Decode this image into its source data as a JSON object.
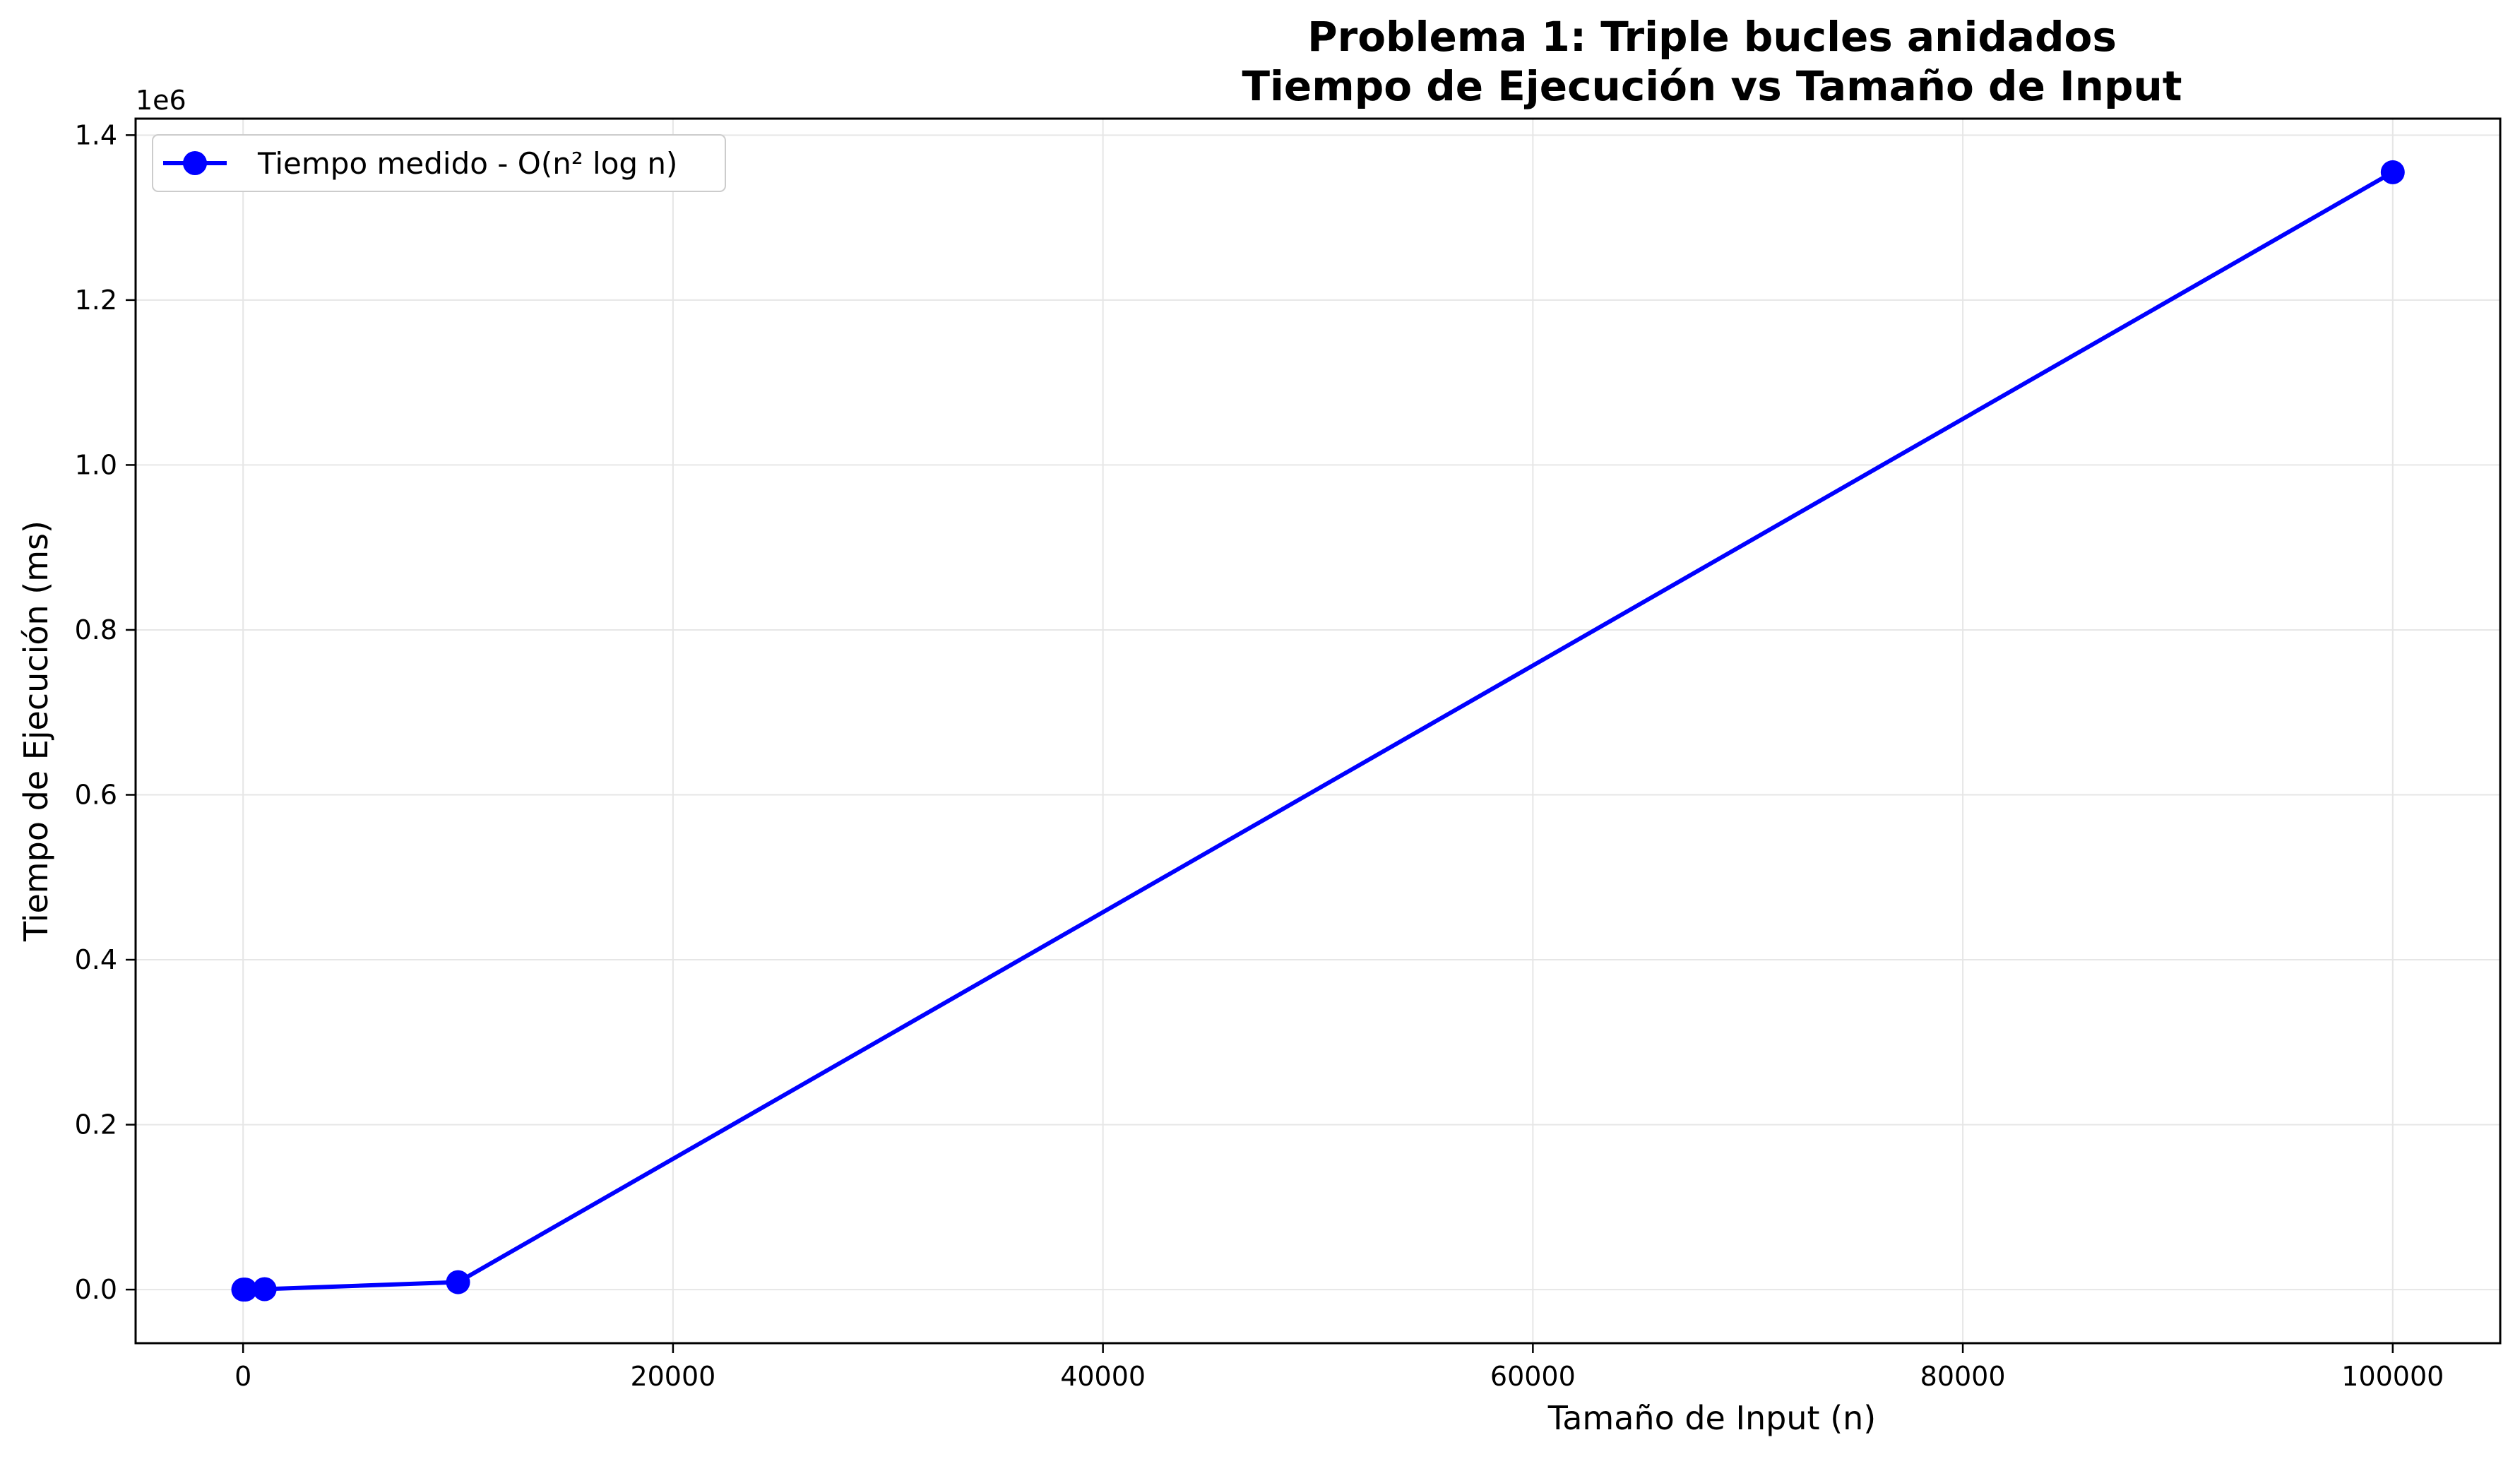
{
  "chart_data": {
    "type": "line",
    "title": [
      "Problema 1: Triple bucles anidados",
      "Tiempo de Ejecución vs Tamaño de Input"
    ],
    "xlabel": "Tamaño de Input (n)",
    "ylabel": "Tiempo de Ejecución (ms)",
    "y_offset_label": "1e6",
    "xlim": [
      -5000,
      105000
    ],
    "ylim": [
      -65000,
      1420000
    ],
    "x_ticks": [
      0,
      20000,
      40000,
      60000,
      80000,
      100000
    ],
    "x_tick_labels": [
      "0",
      "20000",
      "40000",
      "60000",
      "80000",
      "100000"
    ],
    "y_ticks": [
      0,
      200000,
      400000,
      600000,
      800000,
      1000000,
      1200000,
      1400000
    ],
    "y_tick_labels": [
      "0.0",
      "0.2",
      "0.4",
      "0.6",
      "0.8",
      "1.0",
      "1.2",
      "1.4"
    ],
    "grid": true,
    "legend_position": "upper-left",
    "series": [
      {
        "name": "Tiempo medido - O(n² log n)",
        "color": "#0000ff",
        "marker": "circle",
        "x": [
          10,
          100,
          1000,
          10000,
          100000
        ],
        "y": [
          0,
          10,
          500,
          9000,
          1355000
        ]
      }
    ]
  }
}
